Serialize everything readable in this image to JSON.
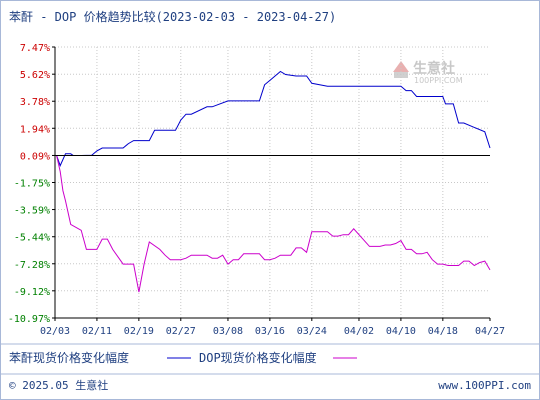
{
  "chart_data": {
    "type": "line",
    "title": "苯酐 - DOP 价格趋势比较(2023-02-03 - 2023-04-27)",
    "y_ticks": [
      "7.47%",
      "5.62%",
      "3.78%",
      "1.94%",
      "0.09%",
      "-1.75%",
      "-3.59%",
      "-5.44%",
      "-7.28%",
      "-9.12%",
      "-10.97%"
    ],
    "y_tick_values": [
      7.47,
      5.62,
      3.78,
      1.94,
      0.09,
      -1.75,
      -3.59,
      -5.44,
      -7.28,
      -9.12,
      -10.97
    ],
    "ylim": [
      -10.97,
      7.47
    ],
    "x_ticks": [
      "02/03",
      "02/11",
      "02/19",
      "02/27",
      "03/08",
      "03/16",
      "03/24",
      "04/02",
      "04/10",
      "04/18",
      "04/27"
    ],
    "x_tick_days": [
      0,
      8,
      16,
      24,
      33,
      41,
      49,
      58,
      66,
      74,
      83
    ],
    "xlim_days": [
      0,
      83
    ],
    "grid": true,
    "legend_position": "bottom",
    "series": [
      {
        "name": "苯酐现货价格变化幅度",
        "color": "#0000cc",
        "x": [
          0,
          0.3,
          1,
          2,
          3,
          3.5,
          5,
          7,
          8,
          9,
          10,
          13,
          14,
          15,
          18,
          19,
          23,
          24,
          25,
          26,
          29,
          30,
          33,
          34,
          35,
          36,
          37,
          38,
          39,
          40,
          41,
          43,
          44,
          46,
          47,
          48,
          49,
          52,
          54,
          55,
          56,
          57,
          60,
          64,
          65,
          66,
          67,
          68,
          69,
          74,
          74.5,
          75,
          76,
          77,
          78,
          80,
          82,
          83
        ],
        "y": [
          0.09,
          0.09,
          -0.6,
          0.2,
          0.2,
          0.09,
          0.09,
          0.1,
          0.4,
          0.6,
          0.6,
          0.6,
          0.9,
          1.1,
          1.1,
          1.8,
          1.8,
          2.5,
          2.9,
          2.9,
          3.4,
          3.4,
          3.8,
          3.8,
          3.8,
          3.8,
          3.8,
          3.8,
          3.8,
          4.9,
          5.2,
          5.8,
          5.6,
          5.5,
          5.5,
          5.5,
          5.0,
          4.8,
          4.8,
          4.8,
          4.8,
          4.8,
          4.8,
          4.8,
          4.8,
          4.8,
          4.5,
          4.5,
          4.1,
          4.1,
          3.6,
          3.6,
          3.6,
          2.3,
          2.3,
          2.0,
          1.7,
          0.6
        ]
      },
      {
        "name": "DOP现货价格变化幅度",
        "color": "#cc00cc",
        "x": [
          0,
          0.3,
          1,
          1.5,
          2,
          3,
          5,
          6,
          7,
          8,
          9,
          10,
          11,
          13,
          14,
          15,
          16,
          17,
          18,
          20,
          21,
          22,
          23,
          24,
          25,
          26,
          27,
          29,
          30,
          31,
          32,
          33,
          34,
          35,
          36,
          37,
          38,
          39,
          40,
          41,
          42,
          43,
          44,
          45,
          46,
          47,
          48,
          49,
          50,
          51,
          52,
          53,
          54,
          55,
          56,
          57,
          60,
          61,
          62,
          63,
          64,
          65,
          66,
          67,
          68,
          69,
          70,
          71,
          72,
          73,
          74,
          75,
          76,
          77,
          78,
          79,
          80,
          81,
          82,
          83
        ],
        "y": [
          0.09,
          0.09,
          -1.0,
          -2.3,
          -3.0,
          -4.6,
          -5.0,
          -6.3,
          -6.3,
          -6.3,
          -5.6,
          -5.6,
          -6.3,
          -7.3,
          -7.3,
          -7.3,
          -9.2,
          -7.3,
          -5.8,
          -6.3,
          -6.7,
          -7.0,
          -7.0,
          -7.0,
          -6.9,
          -6.7,
          -6.7,
          -6.7,
          -6.9,
          -6.9,
          -6.7,
          -7.3,
          -7.0,
          -7.0,
          -6.6,
          -6.6,
          -6.6,
          -6.6,
          -7.0,
          -7.0,
          -6.9,
          -6.7,
          -6.7,
          -6.7,
          -6.2,
          -6.2,
          -6.5,
          -5.1,
          -5.1,
          -5.1,
          -5.1,
          -5.4,
          -5.4,
          -5.3,
          -5.3,
          -4.9,
          -6.1,
          -6.1,
          -6.1,
          -6.0,
          -6.0,
          -5.9,
          -5.7,
          -6.3,
          -6.3,
          -6.6,
          -6.6,
          -6.5,
          -7.0,
          -7.3,
          -7.3,
          -7.4,
          -7.4,
          -7.4,
          -7.1,
          -7.1,
          -7.4,
          -7.2,
          -7.1,
          -7.7
        ]
      }
    ]
  },
  "legend": {
    "items": [
      {
        "label": "苯酐现货价格变化幅度",
        "color": "#0000cc"
      },
      {
        "label": "DOP现货价格变化幅度",
        "color": "#cc00cc"
      }
    ]
  },
  "footer": {
    "copyright": "© 2025.05 生意社",
    "website": "www.100PPI.com"
  },
  "watermark": {
    "brand": "生意社",
    "url": "100PPI.COM"
  },
  "colors": {
    "frame_border": "#a8b8d8",
    "axis": "#000000",
    "grid": "#c8c8c8",
    "positive_label": "#cc0000",
    "negative_label": "#008000",
    "text": "#1f3f80"
  }
}
